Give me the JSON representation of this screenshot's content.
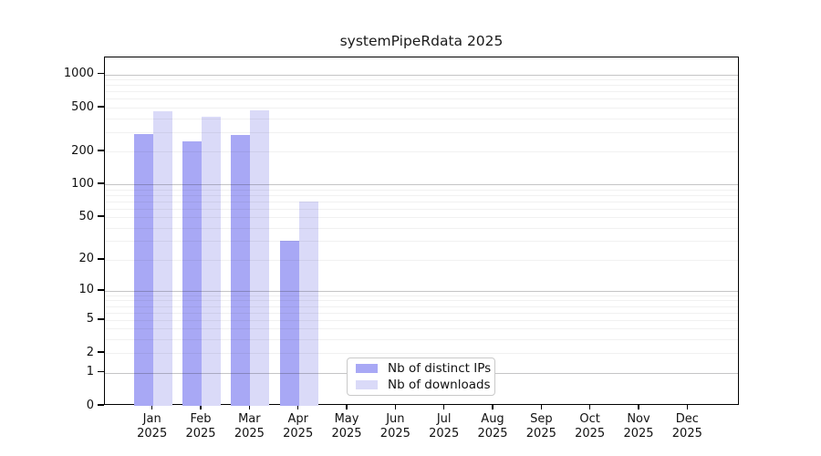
{
  "figure": {
    "title": "systemPipeRdata 2025"
  },
  "legend": {
    "items": [
      {
        "label": "Nb of distinct IPs",
        "color": "#a8a8f5"
      },
      {
        "label": "Nb of downloads",
        "color": "#dadaf8"
      }
    ]
  },
  "chart_data": {
    "type": "bar",
    "title": "systemPipeRdata 2025",
    "categories": [
      "Jan 2025",
      "Feb 2025",
      "Mar 2025",
      "Apr 2025",
      "May 2025",
      "Jun 2025",
      "Jul 2025",
      "Aug 2025",
      "Sep 2025",
      "Oct 2025",
      "Nov 2025",
      "Dec 2025"
    ],
    "series": [
      {
        "name": "Nb of distinct IPs",
        "color": "#a8a8f5",
        "values": [
          285,
          248,
          282,
          30,
          null,
          null,
          null,
          null,
          null,
          null,
          null,
          null
        ]
      },
      {
        "name": "Nb of downloads",
        "color": "#dadaf8",
        "values": [
          460,
          415,
          475,
          70,
          null,
          null,
          null,
          null,
          null,
          null,
          null,
          null
        ]
      }
    ],
    "xlabel": "",
    "ylabel": "",
    "yscale": "log1p",
    "yticks": [
      0,
      1,
      2,
      5,
      10,
      20,
      50,
      100,
      200,
      500,
      1000
    ],
    "ylim": [
      0,
      1425
    ],
    "grid": {
      "major": [
        1,
        10,
        100,
        1000
      ],
      "minor": [
        2,
        3,
        4,
        6,
        7,
        8,
        9,
        20,
        30,
        40,
        60,
        70,
        80,
        90,
        200,
        300,
        400,
        600,
        700,
        800,
        900
      ],
      "minor_labeled": [
        5,
        50,
        500
      ]
    },
    "legend_position": "inside-bottom-center",
    "colors": {
      "axis": "#000000",
      "major_grid": "#c3c3c3",
      "minor_grid": "#ededed"
    }
  }
}
